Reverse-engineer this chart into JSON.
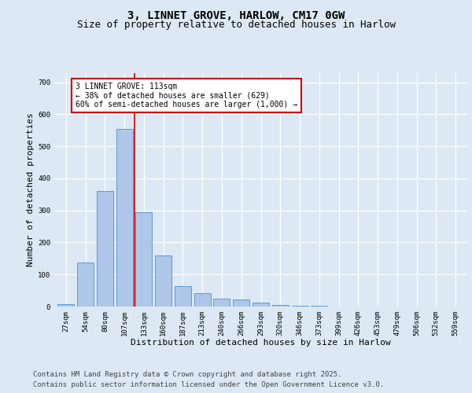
{
  "title_line1": "3, LINNET GROVE, HARLOW, CM17 0GW",
  "title_line2": "Size of property relative to detached houses in Harlow",
  "xlabel": "Distribution of detached houses by size in Harlow",
  "ylabel": "Number of detached properties",
  "categories": [
    "27sqm",
    "54sqm",
    "80sqm",
    "107sqm",
    "133sqm",
    "160sqm",
    "187sqm",
    "213sqm",
    "240sqm",
    "266sqm",
    "293sqm",
    "320sqm",
    "346sqm",
    "373sqm",
    "399sqm",
    "426sqm",
    "453sqm",
    "479sqm",
    "506sqm",
    "532sqm",
    "559sqm"
  ],
  "values": [
    8,
    138,
    360,
    555,
    295,
    160,
    65,
    42,
    25,
    22,
    12,
    5,
    3,
    2,
    1,
    0,
    0,
    0,
    0,
    0,
    0
  ],
  "bar_color": "#aec6e8",
  "bar_edge_color": "#5b9bd5",
  "vline_x": 3.5,
  "vline_color": "#cc0000",
  "annotation_text": "3 LINNET GROVE: 113sqm\n← 38% of detached houses are smaller (629)\n60% of semi-detached houses are larger (1,000) →",
  "annotation_box_color": "#ffffff",
  "annotation_box_edge": "#cc0000",
  "ylim": [
    0,
    730
  ],
  "yticks": [
    0,
    100,
    200,
    300,
    400,
    500,
    600,
    700
  ],
  "background_color": "#dce9f5",
  "plot_bg_color": "#dce9f5",
  "footer_line1": "Contains HM Land Registry data © Crown copyright and database right 2025.",
  "footer_line2": "Contains public sector information licensed under the Open Government Licence v3.0.",
  "title_fontsize": 10,
  "subtitle_fontsize": 9,
  "tick_fontsize": 6.5,
  "xlabel_fontsize": 8,
  "ylabel_fontsize": 8,
  "footer_fontsize": 6.5,
  "annot_fontsize": 7
}
